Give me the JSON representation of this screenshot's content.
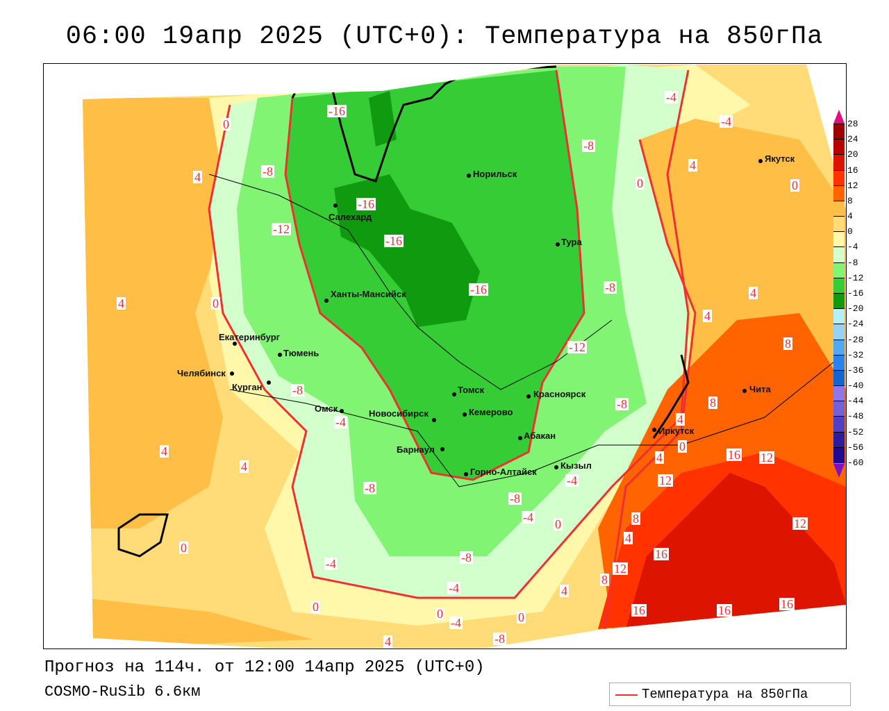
{
  "title": "06:00 19апр 2025 (UTC+0): Температура на 850гПа",
  "forecast_line": "Прогноз на 114ч. от 12:00 14апр 2025 (UTC+0)",
  "model_line": "COSMO-RuSib 6.6км",
  "legend": {
    "label": "Температура на 850гПа",
    "line_color": "#f03030"
  },
  "colorbar": {
    "labels": [
      "28",
      "24",
      "20",
      "16",
      "12",
      "8",
      "4",
      "0",
      "-4",
      "-8",
      "-12",
      "-16",
      "-20",
      "-24",
      "-28",
      "-32",
      "-36",
      "-40",
      "-44",
      "-48",
      "-52",
      "-56",
      "-60"
    ],
    "colors": [
      "#9c0000",
      "#bc0000",
      "#dc1400",
      "#ff3200",
      "#ff6400",
      "#ffbe46",
      "#ffdc78",
      "#fff8aa",
      "#d2ffcc",
      "#82f474",
      "#36cc36",
      "#109a10",
      "#b4f0f8",
      "#96d2f8",
      "#50a8f0",
      "#2882f0",
      "#1464d2",
      "#8c78e8",
      "#7460d8",
      "#5040c8",
      "#2c1ca0",
      "#200890"
    ],
    "top_arrow_color": "#e01080",
    "bottom_arrow_color": "#8010c0"
  },
  "cities": [
    "Салехард",
    "Норильск",
    "Тура",
    "Якутск",
    "Ханты-Мансийск",
    "Екатеринбург",
    "Тюмень",
    "Челябинск",
    "Курган",
    "Омск",
    "Новосибирск",
    "Томск",
    "Кемерово",
    "Красноярск",
    "Барнаул",
    "Абакан",
    "Горно-Алтайск",
    "Кызыл",
    "Иркутск",
    "Чита"
  ],
  "contour_labels": [
    "-16",
    "-16",
    "-16",
    "-16",
    "-12",
    "-8",
    "-8",
    "-4",
    "-4",
    "4",
    "0",
    "0",
    "-8",
    "-12",
    "-8",
    "8",
    "4",
    "4",
    "8",
    "4",
    "0",
    "4",
    "12",
    "16",
    "12",
    "12",
    "8",
    "4",
    "16",
    "12",
    "8",
    "4",
    "16",
    "16",
    "16",
    "0",
    "-8",
    "-4",
    "0",
    "-4",
    "-8",
    "0",
    "-4",
    "-8",
    "-4",
    "-8",
    "-4",
    "0",
    "4",
    "0",
    "4",
    "4",
    "-4",
    "-8",
    "0",
    "4",
    "4",
    "0"
  ]
}
